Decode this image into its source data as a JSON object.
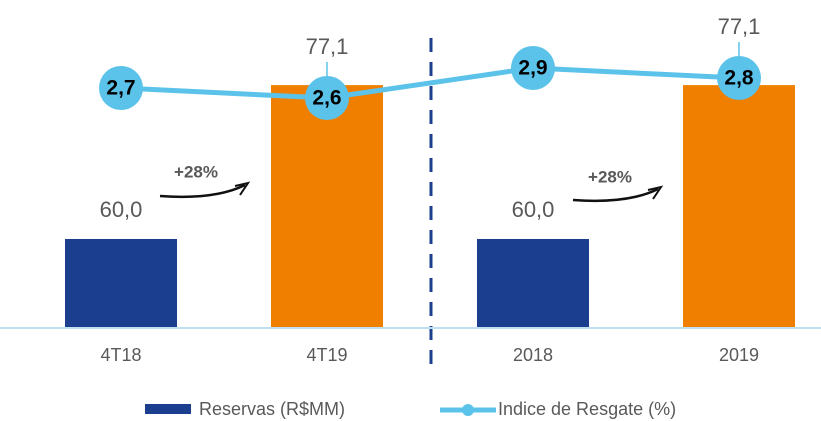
{
  "chart_data": {
    "type": "bar-line",
    "categories": [
      "4T18",
      "4T19",
      "2018",
      "2019"
    ],
    "series": [
      {
        "name": "Reservas (R$MM)",
        "type": "bar",
        "color": "#1b3f8e",
        "colors": [
          "#1b3f8e",
          "#f07f00",
          "#1b3f8e",
          "#f07f00"
        ],
        "values": [
          60.0,
          77.1,
          60.0,
          77.1
        ],
        "value_labels": [
          "60,0",
          "77,1",
          "60,0",
          "77,1"
        ]
      },
      {
        "name": "Indice de Resgate (%)",
        "type": "line",
        "axis": "y2",
        "color": "#5bc2ea",
        "values": [
          2.7,
          2.6,
          2.9,
          2.8
        ],
        "value_labels": [
          "2,7",
          "2,6",
          "2,9",
          "2,8"
        ]
      }
    ],
    "ylim": [
      50,
      86
    ],
    "y2lim": [
      0.3,
      3.54
    ],
    "annotations": [
      "+28%",
      "+28%"
    ]
  }
}
